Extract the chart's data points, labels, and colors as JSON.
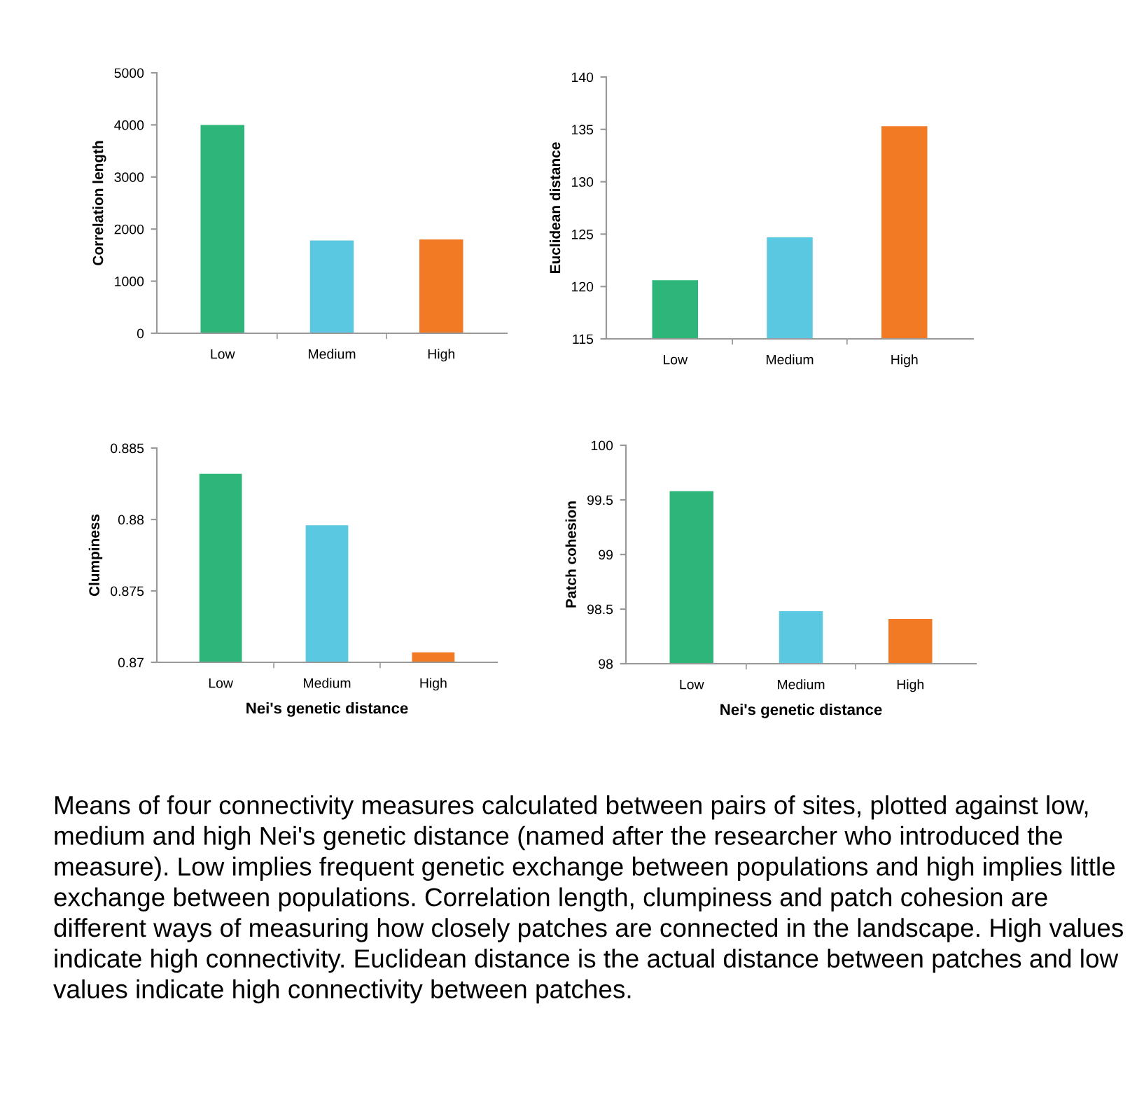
{
  "chart_data": [
    {
      "type": "bar",
      "ylabel": "Correlation length",
      "categories": [
        "Low",
        "Medium",
        "High"
      ],
      "values": [
        4000,
        1780,
        1800
      ],
      "colors": [
        "#2eb67a",
        "#5bc8e2",
        "#f27a24"
      ],
      "ylim": [
        0,
        5000
      ],
      "yticks": [
        0,
        1000,
        2000,
        3000,
        4000,
        5000
      ],
      "grid": false,
      "legend": false
    },
    {
      "type": "bar",
      "ylabel": "Euclidean distance",
      "categories": [
        "Low",
        "Medium",
        "High"
      ],
      "values": [
        120.6,
        124.7,
        135.3
      ],
      "colors": [
        "#2eb67a",
        "#5bc8e2",
        "#f27a24"
      ],
      "ylim": [
        115,
        140
      ],
      "yticks": [
        115,
        120,
        125,
        130,
        135,
        140
      ],
      "grid": false,
      "legend": false
    },
    {
      "type": "bar",
      "ylabel": "Clumpiness",
      "xlabel": "Nei's genetic distance",
      "categories": [
        "Low",
        "Medium",
        "High"
      ],
      "values": [
        0.8832,
        0.8796,
        0.8707
      ],
      "colors": [
        "#2eb67a",
        "#5bc8e2",
        "#f27a24"
      ],
      "ylim": [
        0.87,
        0.885
      ],
      "yticks": [
        {
          "value": 0.87,
          "label": "0.87"
        },
        {
          "value": 0.875,
          "label": "0.875"
        },
        {
          "value": 0.88,
          "label": "0.88"
        },
        {
          "value": 0.885,
          "label": "0.885"
        }
      ],
      "grid": false,
      "legend": false
    },
    {
      "type": "bar",
      "ylabel": "Patch cohesion",
      "xlabel": "Nei's genetic distance",
      "categories": [
        "Low",
        "Medium",
        "High"
      ],
      "values": [
        99.58,
        98.48,
        98.41
      ],
      "colors": [
        "#2eb67a",
        "#5bc8e2",
        "#f27a24"
      ],
      "ylim": [
        98,
        100
      ],
      "yticks": [
        98,
        98.5,
        99,
        99.5,
        100
      ],
      "grid": false,
      "legend": false,
      "annotations": [
        "Means of four connectivity measures calculated between pairs of sites, plotted against low, medium and high Nei's genetic distance (named after the researcher who introduced the measure). Low implies frequent genetic exchange between populations and high implies little exchange between populations. Correlation length, clumpiness and patch cohesion are different ways of measuring how closely patches are connected in the landscape. High values indicate high connectivity. Euclidean distance is the actual distance between patches and low values indicate high connectivity between patches."
      ]
    }
  ]
}
